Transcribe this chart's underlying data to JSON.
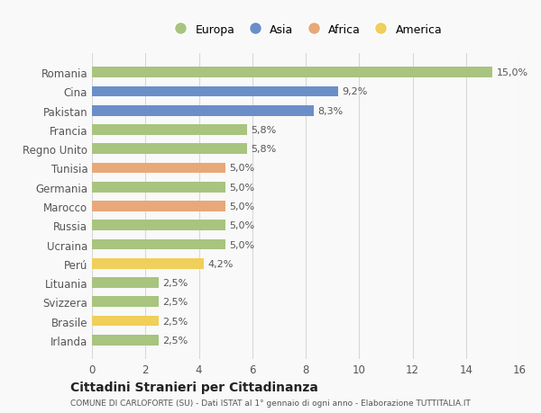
{
  "countries": [
    "Romania",
    "Cina",
    "Pakistan",
    "Francia",
    "Regno Unito",
    "Tunisia",
    "Germania",
    "Marocco",
    "Russia",
    "Ucraina",
    "Perú",
    "Lituania",
    "Svizzera",
    "Brasile",
    "Irlanda"
  ],
  "values": [
    15.0,
    9.2,
    8.3,
    5.8,
    5.8,
    5.0,
    5.0,
    5.0,
    5.0,
    5.0,
    4.2,
    2.5,
    2.5,
    2.5,
    2.5
  ],
  "labels": [
    "15,0%",
    "9,2%",
    "8,3%",
    "5,8%",
    "5,8%",
    "5,0%",
    "5,0%",
    "5,0%",
    "5,0%",
    "5,0%",
    "4,2%",
    "2,5%",
    "2,5%",
    "2,5%",
    "2,5%"
  ],
  "continent": [
    "Europa",
    "Asia",
    "Asia",
    "Europa",
    "Europa",
    "Africa",
    "Europa",
    "Africa",
    "Europa",
    "Europa",
    "America",
    "Europa",
    "Europa",
    "America",
    "Europa"
  ],
  "colors": {
    "Europa": "#a8c47e",
    "Asia": "#6b8ec9",
    "Africa": "#e8a878",
    "America": "#f0cf5a"
  },
  "legend_order": [
    "Europa",
    "Asia",
    "Africa",
    "America"
  ],
  "bar_height": 0.55,
  "xlim": [
    0,
    16
  ],
  "xticks": [
    0,
    2,
    4,
    6,
    8,
    10,
    12,
    14,
    16
  ],
  "title": "Cittadini Stranieri per Cittadinanza",
  "subtitle": "COMUNE DI CARLOFORTE (SU) - Dati ISTAT al 1° gennaio di ogni anno - Elaborazione TUTTITALIA.IT",
  "bg_color": "#f9f9f9",
  "grid_color": "#d8d8d8",
  "label_fontsize": 8,
  "ytick_fontsize": 8.5,
  "xtick_fontsize": 8.5
}
